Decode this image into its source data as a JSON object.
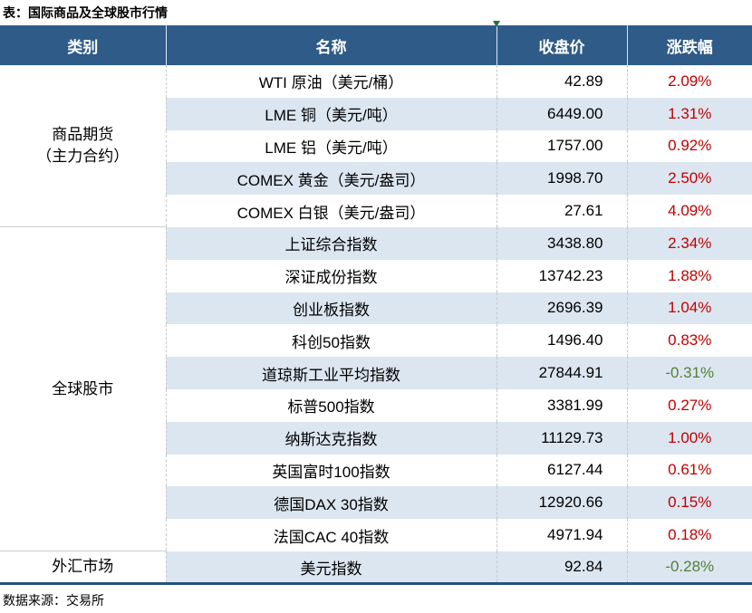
{
  "title": "表：国际商品及全球股市行情",
  "footer": "数据来源：交易所",
  "columns": [
    "类别",
    "名称",
    "收盘价",
    "涨跌幅"
  ],
  "groups": [
    {
      "label": "商品期货\n（主力合约）",
      "rowspan": 5
    },
    {
      "label": "全球股市",
      "rowspan": 10
    },
    {
      "label": "外汇市场",
      "rowspan": 1
    }
  ],
  "rows": [
    {
      "name": "WTI 原油（美元/桶）",
      "close": "42.89",
      "change": "2.09%",
      "dir": "up"
    },
    {
      "name": "LME 铜（美元/吨）",
      "close": "6449.00",
      "change": "1.31%",
      "dir": "up"
    },
    {
      "name": "LME 铝（美元/吨）",
      "close": "1757.00",
      "change": "0.92%",
      "dir": "up"
    },
    {
      "name": "COMEX 黄金（美元/盎司）",
      "close": "1998.70",
      "change": "2.50%",
      "dir": "up"
    },
    {
      "name": "COMEX 白银（美元/盎司）",
      "close": "27.61",
      "change": "4.09%",
      "dir": "up"
    },
    {
      "name": "上证综合指数",
      "close": "3438.80",
      "change": "2.34%",
      "dir": "up"
    },
    {
      "name": "深证成份指数",
      "close": "13742.23",
      "change": "1.88%",
      "dir": "up"
    },
    {
      "name": "创业板指数",
      "close": "2696.39",
      "change": "1.04%",
      "dir": "up"
    },
    {
      "name": "科创50指数",
      "close": "1496.40",
      "change": "0.83%",
      "dir": "up"
    },
    {
      "name": "道琼斯工业平均指数",
      "close": "27844.91",
      "change": "-0.31%",
      "dir": "down"
    },
    {
      "name": "标普500指数",
      "close": "3381.99",
      "change": "0.27%",
      "dir": "up"
    },
    {
      "name": "纳斯达克指数",
      "close": "11129.73",
      "change": "1.00%",
      "dir": "up"
    },
    {
      "name": "英国富时100指数",
      "close": "6127.44",
      "change": "0.61%",
      "dir": "up"
    },
    {
      "name": "德国DAX 30指数",
      "close": "12920.66",
      "change": "0.15%",
      "dir": "up"
    },
    {
      "name": "法国CAC 40指数",
      "close": "4971.94",
      "change": "0.18%",
      "dir": "up"
    },
    {
      "name": "美元指数",
      "close": "92.84",
      "change": "-0.28%",
      "dir": "down"
    }
  ],
  "colors": {
    "header_bg": "#2F5B88",
    "row_stripe": "#DCE6F1",
    "up_red": "#C00000",
    "down_green": "#538135",
    "table_bottom_border": "#24527E",
    "corner_mark_green": "#1E7145"
  }
}
